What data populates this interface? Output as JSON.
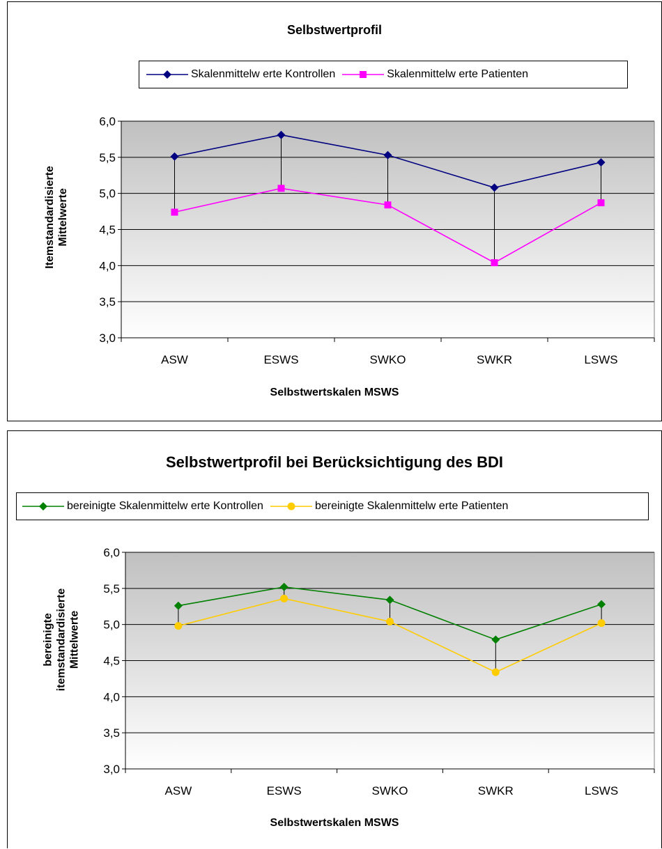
{
  "charts": [
    {
      "title": "Selbstwertprofil",
      "xlabel": "Selbstwertskalen MSWS",
      "ylabel_lines": [
        "Itemstandardisierte",
        "Mittelwerte"
      ],
      "legend": [
        "Skalenmittelw erte Kontrollen",
        "Skalenmittelw erte Patienten"
      ]
    },
    {
      "title": "Selbstwertprofil bei Berücksichtigung des BDI",
      "xlabel": "Selbstwertskalen MSWS",
      "ylabel_lines": [
        "bereinigte",
        "itemstandardisierte",
        "Mittelwerte"
      ],
      "legend": [
        "bereinigte Skalenmittelw erte Kontrollen",
        "bereinigte Skalenmittelw erte Patienten"
      ]
    }
  ],
  "chart_data": [
    {
      "type": "line",
      "title": "Selbstwertprofil",
      "categories": [
        "ASW",
        "ESWS",
        "SWKO",
        "SWKR",
        "LSWS"
      ],
      "series": [
        {
          "name": "Skalenmittelw erte Kontrollen",
          "values": [
            5.51,
            5.81,
            5.53,
            5.08,
            5.43
          ],
          "color": "#000080",
          "marker": "diamond"
        },
        {
          "name": "Skalenmittelw erte Patienten",
          "values": [
            4.74,
            5.07,
            4.84,
            4.04,
            4.87
          ],
          "color": "#FF00FF",
          "marker": "square"
        }
      ],
      "xlabel": "Selbstwertskalen MSWS",
      "ylabel": "Itemstandardisierte Mittelwerte",
      "ylim": [
        3.0,
        6.0
      ],
      "yticks": [
        "3,0",
        "3,5",
        "4,0",
        "4,5",
        "5,0",
        "5,5",
        "6,0"
      ],
      "grid": true,
      "legend_position": "top",
      "drop_lines": true
    },
    {
      "type": "line",
      "title": "Selbstwertprofil bei Berücksichtigung des BDI",
      "categories": [
        "ASW",
        "ESWS",
        "SWKO",
        "SWKR",
        "LSWS"
      ],
      "series": [
        {
          "name": "bereinigte Skalenmittelw erte Kontrollen",
          "values": [
            5.26,
            5.52,
            5.34,
            4.79,
            5.28
          ],
          "color": "#008000",
          "marker": "diamond"
        },
        {
          "name": "bereinigte Skalenmittelw erte Patienten",
          "values": [
            4.98,
            5.36,
            5.04,
            4.34,
            5.02
          ],
          "color": "#FFCC00",
          "marker": "circle"
        }
      ],
      "xlabel": "Selbstwertskalen MSWS",
      "ylabel": "bereinigte itemstandardisierte Mittelwerte",
      "ylim": [
        3.0,
        6.0
      ],
      "yticks": [
        "3,0",
        "3,5",
        "4,0",
        "4,5",
        "5,0",
        "5,5",
        "6,0"
      ],
      "grid": true,
      "legend_position": "top",
      "drop_lines": true
    }
  ]
}
